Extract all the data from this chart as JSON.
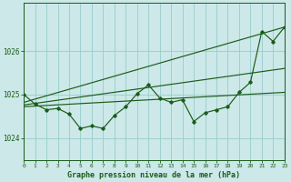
{
  "bg_color": "#cce8e8",
  "grid_color": "#99cccc",
  "line_color": "#1a5c1a",
  "x_min": 0,
  "x_max": 23,
  "y_min": 1023.5,
  "y_max": 1027.1,
  "yticks": [
    1024,
    1025,
    1026
  ],
  "xlabel": "Graphe pression niveau de la mer (hPa)",
  "series1": [
    1025.0,
    1024.78,
    1024.65,
    1024.68,
    1024.55,
    1024.22,
    1024.28,
    1024.22,
    1024.52,
    1024.72,
    1025.02,
    1025.22,
    1024.92,
    1024.82,
    1024.88,
    1024.38,
    1024.58,
    1024.65,
    1024.72,
    1025.05,
    1025.28,
    1026.45,
    1026.22,
    1026.55
  ],
  "trend1_x": [
    0,
    23
  ],
  "trend1_y": [
    1024.82,
    1026.55
  ],
  "trend2_x": [
    0,
    23
  ],
  "trend2_y": [
    1024.76,
    1025.6
  ],
  "trend3_x": [
    0,
    23
  ],
  "trend3_y": [
    1024.72,
    1025.05
  ]
}
